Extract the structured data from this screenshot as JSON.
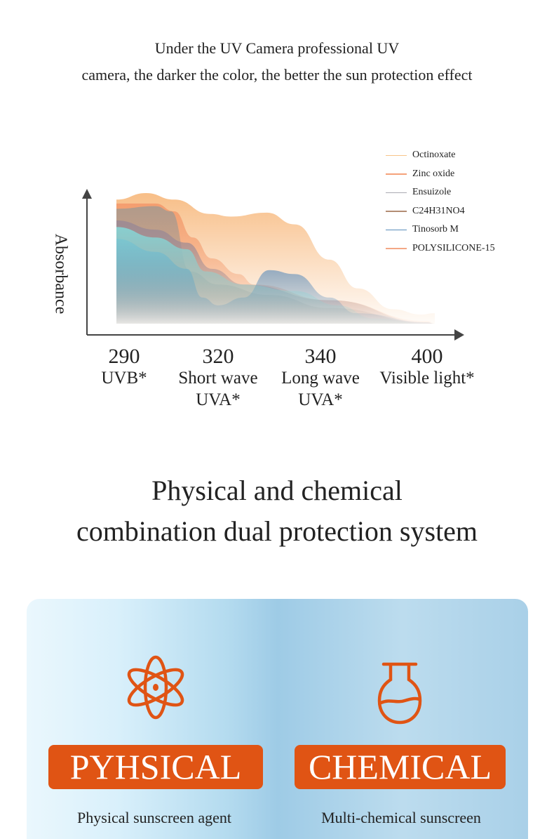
{
  "intro": {
    "line1": "Under the UV Camera professional UV",
    "line2": "camera, the darker the color, the better the sun protection effect"
  },
  "chart_data": {
    "type": "area",
    "title": "",
    "ylabel": "Absorbance",
    "xlabel": "",
    "x_ticks": [
      {
        "value": "290",
        "label": "UVB*"
      },
      {
        "value": "320",
        "label": "Short wave UVA*"
      },
      {
        "value": "340",
        "label": "Long wave UVA*"
      },
      {
        "value": "400",
        "label": "Visible light*"
      }
    ],
    "ylim": [
      0,
      1
    ],
    "grid": false,
    "legend_position": "top-right",
    "series": [
      {
        "name": "Octinoxate",
        "color": "#f8c48a",
        "fill": "#f7b77a",
        "x": [
          287.5,
          297,
          306,
          317.5,
          322.5,
          329.5,
          335,
          345,
          361,
          381,
          396.5,
          403
        ],
        "values": [
          0.95,
          1.0,
          0.95,
          0.84,
          0.82,
          0.85,
          0.76,
          0.49,
          0.27,
          0.11,
          0.07,
          0.08
        ]
      },
      {
        "name": "Zinc oxide",
        "color": "#f5a27a",
        "fill": "#f39a6c",
        "x": [
          287.5,
          300,
          306,
          312,
          318,
          324,
          327,
          345,
          400,
          403
        ],
        "values": [
          0.92,
          0.92,
          0.86,
          0.66,
          0.5,
          0.38,
          0.3,
          0.18,
          0.02,
          0.0
        ]
      },
      {
        "name": "Ensuizole",
        "color": "#aaaab2",
        "fill": "#a99a8e",
        "x": [
          287.5,
          300,
          305,
          311,
          320,
          330,
          345,
          400,
          403
        ],
        "values": [
          0.88,
          0.9,
          0.86,
          0.4,
          0.3,
          0.22,
          0.12,
          0.01,
          0.0
        ]
      },
      {
        "name": "C24H31NO4",
        "color": "#b38d74",
        "fill": "#9c8a94",
        "x": [
          287.5,
          300,
          310,
          318,
          325,
          345,
          400,
          403
        ],
        "values": [
          0.79,
          0.72,
          0.62,
          0.42,
          0.3,
          0.18,
          0.01,
          0.0
        ]
      },
      {
        "name": "Tinosorb M",
        "color": "#5a8dbb",
        "fill": "#4f86b9",
        "x": [
          287.5,
          300,
          310,
          315,
          320,
          325,
          330,
          335,
          345,
          360,
          400,
          403
        ],
        "values": [
          0.65,
          0.55,
          0.42,
          0.2,
          0.14,
          0.2,
          0.41,
          0.38,
          0.2,
          0.08,
          0.01,
          0.0
        ]
      },
      {
        "name": "POLYSILICONE-15",
        "color": "#f4a886",
        "fill": "#86d6d6",
        "x": [
          287.5,
          300,
          310,
          316,
          325,
          335,
          350,
          370,
          400,
          403
        ],
        "values": [
          0.74,
          0.66,
          0.57,
          0.4,
          0.3,
          0.25,
          0.14,
          0.04,
          0.0,
          0.0
        ]
      }
    ]
  },
  "section_title": {
    "line1": "Physical and chemical",
    "line2": "combination dual protection system"
  },
  "cards": [
    {
      "icon": "atom-icon",
      "badge": "PYHSICAL",
      "caption": "Physical sunscreen agent"
    },
    {
      "icon": "flask-icon",
      "badge": "CHEMICAL",
      "caption": "Multi-chemical sunscreen"
    }
  ],
  "colors": {
    "accent": "#e05414",
    "panel": "#a9d0e8"
  }
}
